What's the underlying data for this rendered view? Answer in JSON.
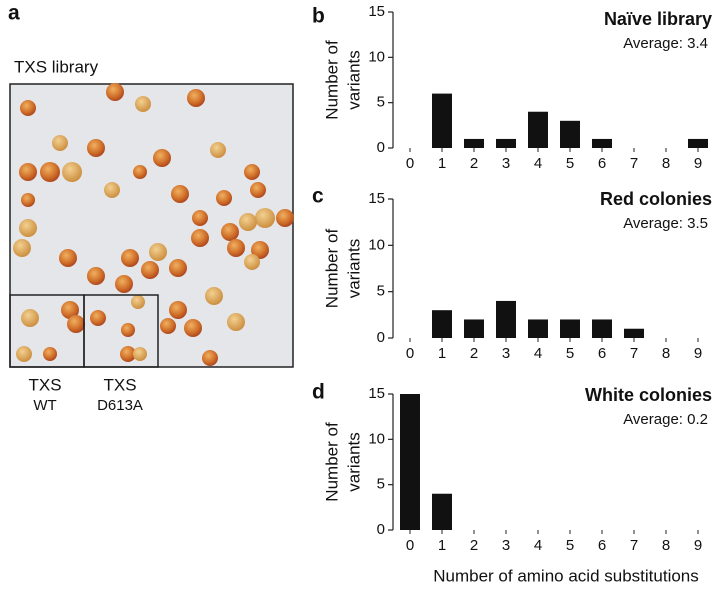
{
  "panel_a": {
    "letter": "a",
    "title": "TXS library",
    "insets": [
      {
        "line1": "TXS",
        "line2": "WT"
      },
      {
        "line1": "TXS",
        "line2": "D613A"
      }
    ]
  },
  "chart_data": [
    {
      "type": "bar",
      "letter": "b",
      "title": "Naïve library",
      "subtitle": "Average: 3.4",
      "ylabel": [
        "Number of",
        "variants"
      ],
      "categories": [
        0,
        1,
        2,
        3,
        4,
        5,
        6,
        7,
        8,
        9
      ],
      "values": [
        0,
        6,
        1,
        1,
        4,
        3,
        1,
        0,
        0,
        1
      ],
      "color": "#111111",
      "ylim": [
        0,
        15
      ],
      "yticks": [
        0,
        5,
        10,
        15
      ]
    },
    {
      "type": "bar",
      "letter": "c",
      "title": "Red colonies",
      "subtitle": "Average: 3.5",
      "ylabel": [
        "Number of",
        "variants"
      ],
      "categories": [
        0,
        1,
        2,
        3,
        4,
        5,
        6,
        7,
        8,
        9
      ],
      "values": [
        0,
        3,
        2,
        4,
        2,
        2,
        2,
        1,
        0,
        0
      ],
      "color": "#111111",
      "ylim": [
        0,
        15
      ],
      "yticks": [
        0,
        5,
        10,
        15
      ]
    },
    {
      "type": "bar",
      "letter": "d",
      "title": "White colonies",
      "subtitle": "Average: 0.2",
      "ylabel": [
        "Number of",
        "variants"
      ],
      "xlabel": "Number of amino acid substitutions",
      "categories": [
        0,
        1,
        2,
        3,
        4,
        5,
        6,
        7,
        8,
        9
      ],
      "values": [
        15,
        4,
        0,
        0,
        0,
        0,
        0,
        0,
        0,
        0
      ],
      "color": "#111111",
      "ylim": [
        0,
        15
      ],
      "yticks": [
        0,
        5,
        10,
        15
      ]
    }
  ]
}
